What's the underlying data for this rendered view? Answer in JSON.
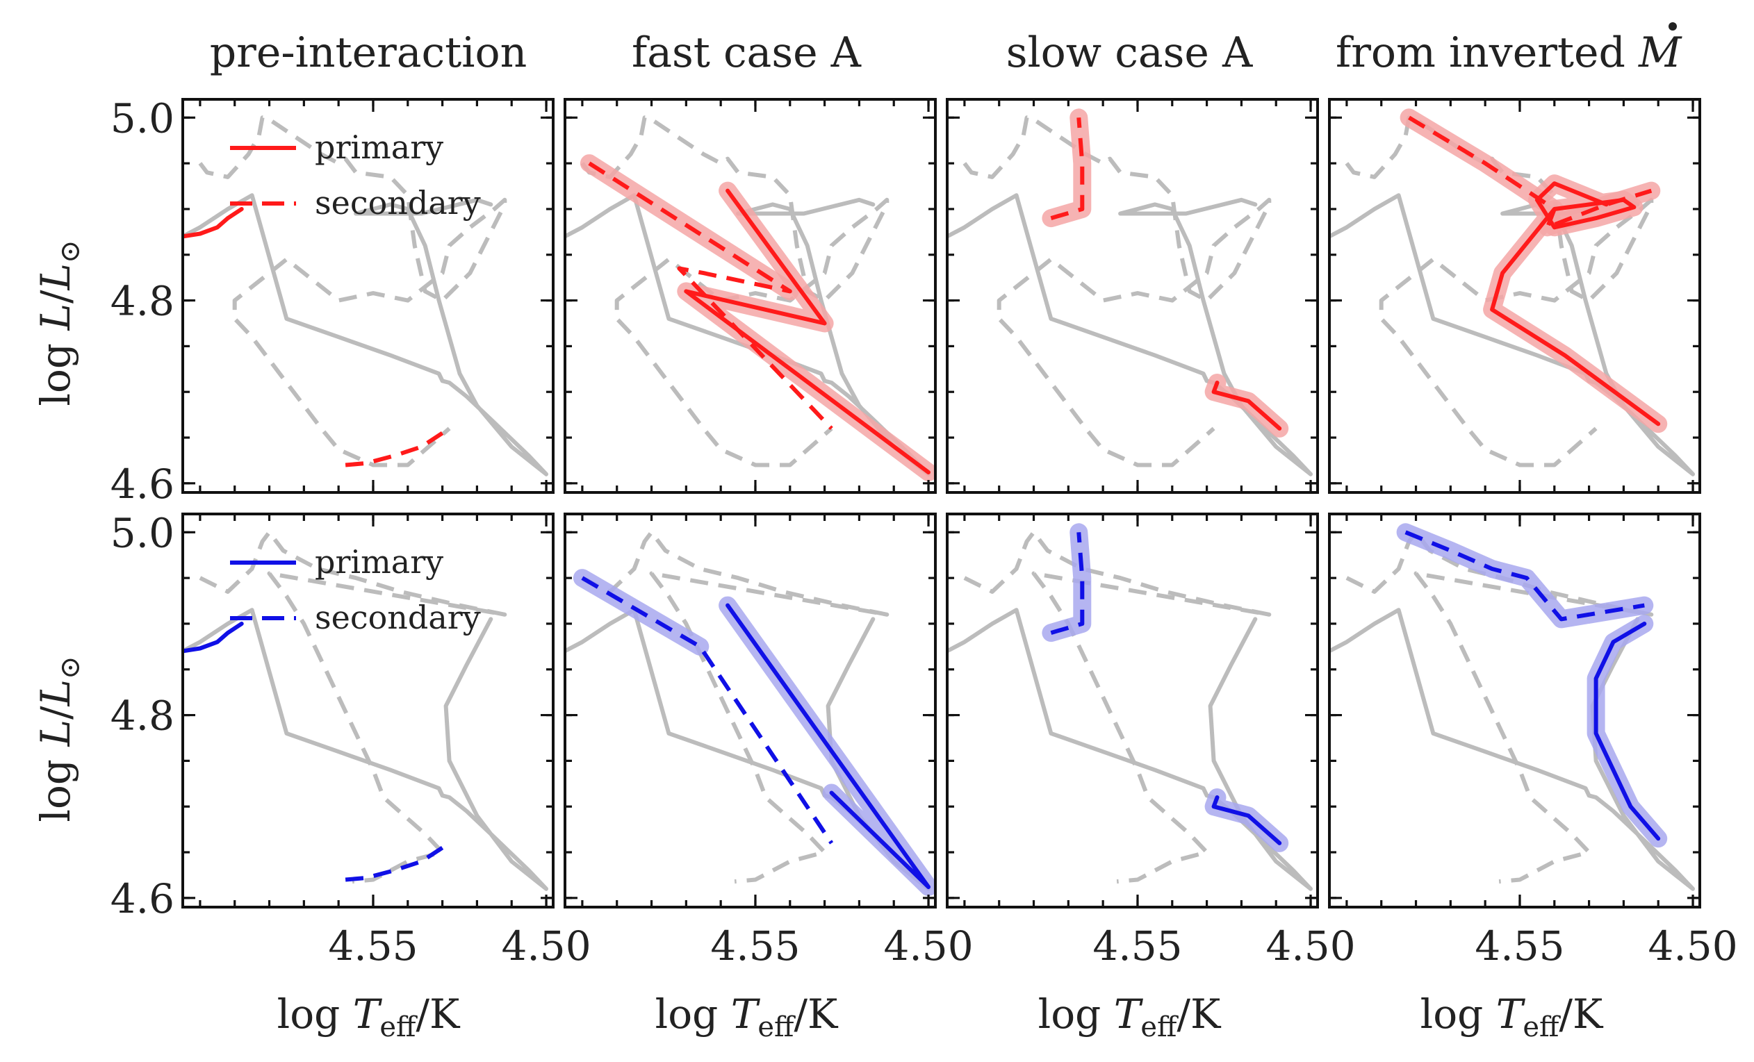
{
  "chart_data": {
    "type": "line",
    "layout": "2 rows x 4 columns, shared axes",
    "x_axis": {
      "label": "log T_eff/K",
      "label_main": "log ",
      "label_T": "T",
      "label_sub": "eff",
      "label_unit": "/K",
      "inverted": true,
      "xlim": [
        4.605,
        4.498
      ],
      "ticks": [
        4.55,
        4.5
      ],
      "tick_labels": [
        "4.55",
        "4.50"
      ]
    },
    "y_axis": {
      "label": "log L/L⊙",
      "label_main": "log ",
      "label_L": "L",
      "label_slash": "/",
      "label_Lsun": "L",
      "label_sun": "⊙",
      "ylim": [
        4.59,
        5.02
      ],
      "ticks": [
        4.6,
        4.8,
        5.0
      ],
      "tick_labels": [
        "4.6",
        "4.8",
        "5.0"
      ]
    },
    "column_titles": [
      "pre-interaction",
      "fast case A",
      "slow case A",
      "from inverted "
    ],
    "title_symbol": "M",
    "legend": {
      "placement": "upper-left",
      "primary": "primary",
      "secondary": "secondary"
    },
    "row_colors": {
      "top": "#ff1a1a",
      "bottom": "#1010e6"
    },
    "halo_colors": {
      "top": "#f4a6a6",
      "bottom": "#a8a8ee"
    },
    "background_color": "#bcbcbc",
    "rows": [
      {
        "background": {
          "primary": [
            [
              4.605,
              4.87
            ],
            [
              4.6,
              4.88
            ],
            [
              4.592,
              4.9
            ],
            [
              4.585,
              4.915
            ],
            [
              4.575,
              4.78
            ],
            [
              4.56,
              4.76
            ],
            [
              4.545,
              4.74
            ],
            [
              4.531,
              4.72
            ],
            [
              4.53,
              4.712
            ],
            [
              4.528,
              4.71
            ],
            [
              4.523,
              4.695
            ],
            [
              4.516,
              4.67
            ],
            [
              4.505,
              4.63
            ],
            [
              4.5,
              4.61
            ],
            [
              4.51,
              4.64
            ],
            [
              4.52,
              4.685
            ],
            [
              4.525,
              4.72
            ],
            [
              4.531,
              4.8
            ],
            [
              4.535,
              4.86
            ],
            [
              4.54,
              4.9
            ],
            [
              4.545,
              4.905
            ],
            [
              4.555,
              4.895
            ],
            [
              4.548,
              4.895
            ],
            [
              4.536,
              4.895
            ],
            [
              4.52,
              4.91
            ],
            [
              4.516,
              4.905
            ]
          ],
          "secondary": [
            [
              4.6,
              4.95
            ],
            [
              4.598,
              4.94
            ],
            [
              4.592,
              4.935
            ],
            [
              4.586,
              4.96
            ],
            [
              4.583,
              4.98
            ],
            [
              4.582,
              5.0
            ],
            [
              4.58,
              4.998
            ],
            [
              4.565,
              4.96
            ],
            [
              4.56,
              4.95
            ],
            [
              4.558,
              4.955
            ],
            [
              4.555,
              4.94
            ],
            [
              4.545,
              4.935
            ],
            [
              4.54,
              4.915
            ],
            [
              4.538,
              4.86
            ],
            [
              4.535,
              4.81
            ],
            [
              4.53,
              4.8
            ],
            [
              4.522,
              4.83
            ],
            [
              4.512,
              4.905
            ],
            [
              4.512,
              4.91
            ],
            [
              4.515,
              4.9
            ],
            [
              4.522,
              4.88
            ],
            [
              4.528,
              4.86
            ],
            [
              4.53,
              4.83
            ],
            [
              4.54,
              4.8
            ],
            [
              4.55,
              4.808
            ],
            [
              4.56,
              4.8
            ],
            [
              4.575,
              4.845
            ],
            [
              4.58,
              4.83
            ],
            [
              4.59,
              4.8
            ],
            [
              4.59,
              4.78
            ],
            [
              4.585,
              4.76
            ],
            [
              4.581,
              4.74
            ],
            [
              4.577,
              4.72
            ],
            [
              4.573,
              4.7
            ],
            [
              4.569,
              4.68
            ],
            [
              4.565,
              4.66
            ],
            [
              4.56,
              4.637
            ],
            [
              4.55,
              4.62
            ],
            [
              4.54,
              4.62
            ],
            [
              4.528,
              4.66
            ]
          ]
        },
        "panels": [
          {
            "primary": [
              [
                4.605,
                4.87
              ],
              [
                4.6,
                4.873
              ],
              [
                4.595,
                4.88
              ],
              [
                4.592,
                4.89
              ],
              [
                4.588,
                4.9
              ]
            ],
            "secondary": [
              [
                4.558,
                4.62
              ],
              [
                4.552,
                4.622
              ],
              [
                4.544,
                4.63
              ],
              [
                4.536,
                4.64
              ],
              [
                4.528,
                4.66
              ]
            ],
            "highlight": "none"
          },
          {
            "primary": [
              [
                4.558,
                4.92
              ],
              [
                4.53,
                4.775
              ],
              [
                4.57,
                4.81
              ],
              [
                4.5,
                4.612
              ]
            ],
            "secondary": [
              [
                4.598,
                4.95
              ],
              [
                4.54,
                4.81
              ],
              [
                4.565,
                4.83
              ],
              [
                4.572,
                4.835
              ],
              [
                4.528,
                4.66
              ]
            ],
            "highlight": "primary-and-secondary"
          },
          {
            "primary": [
              [
                4.527,
                4.71
              ],
              [
                4.528,
                4.7
              ],
              [
                4.518,
                4.69
              ],
              [
                4.509,
                4.66
              ]
            ],
            "secondary": [
              [
                4.575,
                4.89
              ],
              [
                4.566,
                4.9
              ],
              [
                4.566,
                4.95
              ],
              [
                4.567,
                5.0
              ]
            ],
            "highlight": "both"
          },
          {
            "primary": [
              [
                4.51,
                4.665
              ],
              [
                4.537,
                4.74
              ],
              [
                4.558,
                4.79
              ],
              [
                4.555,
                4.83
              ],
              [
                4.54,
                4.9
              ],
              [
                4.52,
                4.91
              ],
              [
                4.517,
                4.902
              ],
              [
                4.528,
                4.89
              ],
              [
                4.54,
                4.88
              ],
              [
                4.545,
                4.91
              ],
              [
                4.54,
                4.928
              ],
              [
                4.525,
                4.905
              ]
            ],
            "secondary": [
              [
                4.582,
                5.0
              ],
              [
                4.56,
                4.95
              ],
              [
                4.54,
                4.9
              ],
              [
                4.542,
                4.88
              ],
              [
                4.525,
                4.905
              ],
              [
                4.512,
                4.92
              ]
            ],
            "highlight": "both"
          }
        ]
      },
      {
        "background": {
          "primary": [
            [
              4.605,
              4.87
            ],
            [
              4.6,
              4.88
            ],
            [
              4.592,
              4.9
            ],
            [
              4.585,
              4.915
            ],
            [
              4.575,
              4.78
            ],
            [
              4.56,
              4.76
            ],
            [
              4.545,
              4.74
            ],
            [
              4.531,
              4.72
            ],
            [
              4.53,
              4.712
            ],
            [
              4.528,
              4.71
            ],
            [
              4.523,
              4.695
            ],
            [
              4.516,
              4.67
            ],
            [
              4.505,
              4.63
            ],
            [
              4.5,
              4.61
            ],
            [
              4.51,
              4.64
            ],
            [
              4.52,
              4.69
            ],
            [
              4.528,
              4.75
            ],
            [
              4.529,
              4.81
            ],
            [
              4.523,
              4.855
            ],
            [
              4.516,
              4.905
            ]
          ],
          "secondary": [
            [
              4.6,
              4.95
            ],
            [
              4.592,
              4.935
            ],
            [
              4.585,
              4.96
            ],
            [
              4.582,
              4.99
            ],
            [
              4.58,
              5.0
            ],
            [
              4.576,
              4.98
            ],
            [
              4.566,
              4.96
            ],
            [
              4.555,
              4.95
            ],
            [
              4.542,
              4.935
            ],
            [
              4.525,
              4.92
            ],
            [
              4.512,
              4.91
            ],
            [
              4.58,
              4.955
            ],
            [
              4.575,
              4.93
            ],
            [
              4.57,
              4.9
            ],
            [
              4.565,
              4.86
            ],
            [
              4.56,
              4.82
            ],
            [
              4.555,
              4.78
            ],
            [
              4.55,
              4.74
            ],
            [
              4.547,
              4.71
            ],
            [
              4.541,
              4.69
            ],
            [
              4.535,
              4.67
            ],
            [
              4.53,
              4.65
            ],
            [
              4.54,
              4.64
            ],
            [
              4.55,
              4.62
            ],
            [
              4.556,
              4.618
            ]
          ]
        },
        "panels": [
          {
            "primary": [
              [
                4.605,
                4.87
              ],
              [
                4.6,
                4.873
              ],
              [
                4.595,
                4.88
              ],
              [
                4.592,
                4.89
              ],
              [
                4.588,
                4.9
              ]
            ],
            "secondary": [
              [
                4.558,
                4.62
              ],
              [
                4.552,
                4.622
              ],
              [
                4.544,
                4.63
              ],
              [
                4.536,
                4.64
              ],
              [
                4.528,
                4.66
              ]
            ],
            "highlight": "none"
          },
          {
            "primary": [
              [
                4.558,
                4.92
              ],
              [
                4.5,
                4.612
              ],
              [
                4.528,
                4.715
              ]
            ],
            "secondary": [
              [
                4.6,
                4.95
              ],
              [
                4.566,
                4.875
              ],
              [
                4.528,
                4.66
              ]
            ],
            "highlight": "primary-and-secondary"
          },
          {
            "primary": [
              [
                4.527,
                4.71
              ],
              [
                4.528,
                4.7
              ],
              [
                4.518,
                4.69
              ],
              [
                4.509,
                4.66
              ]
            ],
            "secondary": [
              [
                4.575,
                4.89
              ],
              [
                4.566,
                4.9
              ],
              [
                4.566,
                4.95
              ],
              [
                4.567,
                5.0
              ]
            ],
            "highlight": "both"
          },
          {
            "primary": [
              [
                4.51,
                4.665
              ],
              [
                4.518,
                4.7
              ],
              [
                4.528,
                4.78
              ],
              [
                4.528,
                4.84
              ],
              [
                4.523,
                4.88
              ],
              [
                4.514,
                4.9
              ]
            ],
            "secondary": [
              [
                4.583,
                5.0
              ],
              [
                4.57,
                4.98
              ],
              [
                4.558,
                4.96
              ],
              [
                4.548,
                4.95
              ],
              [
                4.538,
                4.905
              ],
              [
                4.514,
                4.92
              ]
            ],
            "highlight": "both"
          }
        ]
      }
    ]
  }
}
